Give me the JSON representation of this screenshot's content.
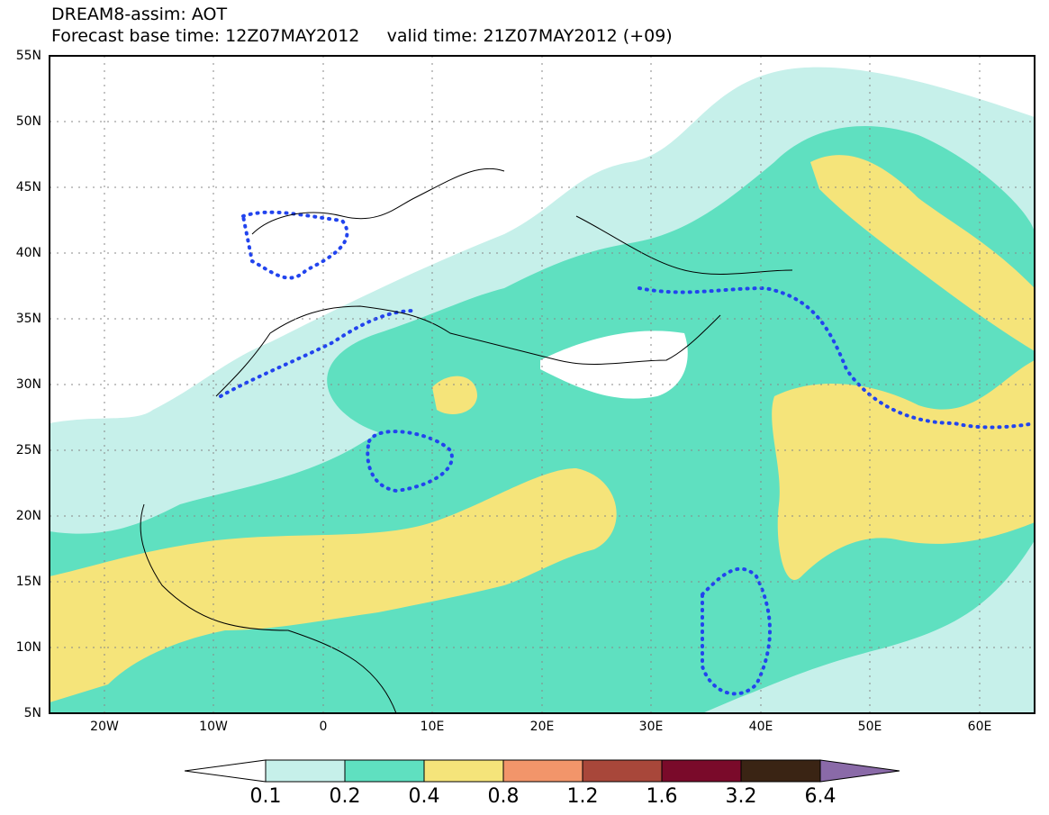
{
  "header": {
    "title": "DREAM8-assim: AOT",
    "base_time": "Forecast base time: 12Z07MAY2012",
    "valid_time": "valid time: 21Z07MAY2012 (+09)"
  },
  "map": {
    "projection": "lat-lon",
    "lon_range": [
      -25,
      65
    ],
    "lat_range": [
      5,
      55
    ],
    "lat_labels": [
      "55N",
      "50N",
      "45N",
      "40N",
      "35N",
      "30N",
      "25N",
      "20N",
      "15N",
      "10N",
      "5N"
    ],
    "lon_labels": [
      "20W",
      "10W",
      "0",
      "10E",
      "20E",
      "30E",
      "40E",
      "50E",
      "60E"
    ],
    "grid": "dotted",
    "field": "dust aerosol optical thickness (shaded)",
    "dotted_contour_color": "#2244ee"
  },
  "colorbar": {
    "levels": [
      "0.1",
      "0.2",
      "0.4",
      "0.8",
      "1.2",
      "1.6",
      "3.2",
      "6.4"
    ],
    "colors": [
      "#ffffff",
      "#c6f0ea",
      "#5fe0c0",
      "#f5e47a",
      "#f2956a",
      "#a8473a",
      "#7a0a2a",
      "#3a2414",
      "#8a6aa8"
    ]
  }
}
